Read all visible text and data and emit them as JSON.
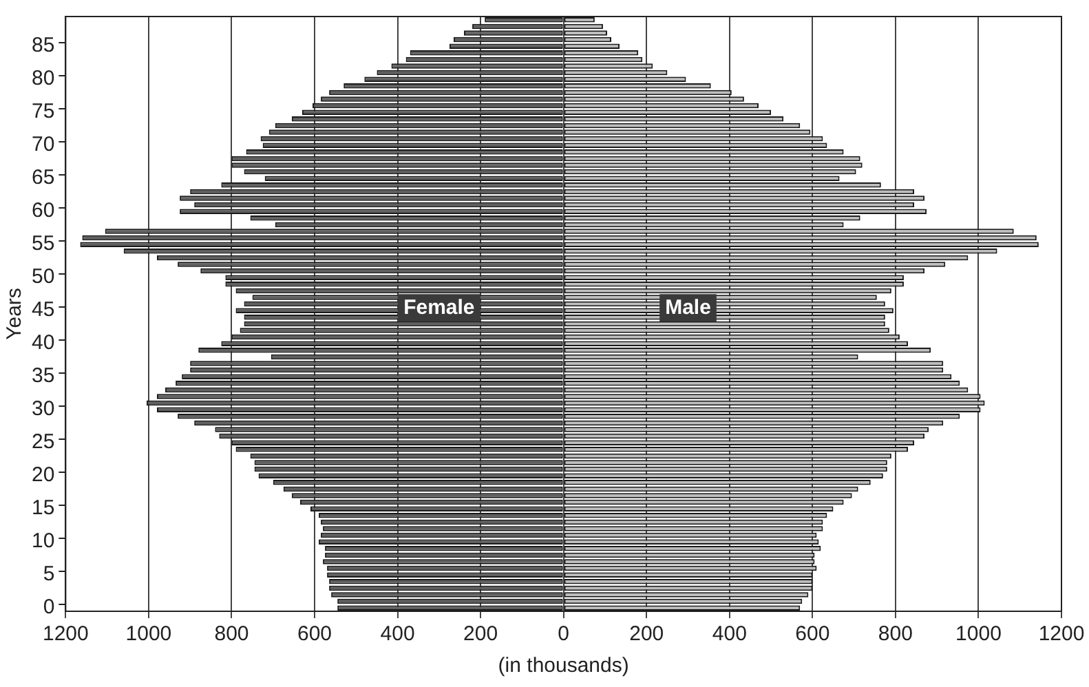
{
  "chart_data": {
    "type": "bar",
    "orientation": "horizontal",
    "xlabel": "(in thousands)",
    "ylabel": "Years",
    "categories": [
      null,
      null,
      null,
      null,
      "85",
      null,
      null,
      null,
      null,
      "80",
      null,
      null,
      null,
      null,
      "75",
      null,
      null,
      null,
      null,
      "70",
      null,
      null,
      null,
      null,
      "65",
      null,
      null,
      null,
      null,
      "60",
      null,
      null,
      null,
      null,
      "55",
      null,
      null,
      null,
      null,
      "50",
      null,
      null,
      null,
      null,
      "45",
      null,
      null,
      null,
      null,
      "40",
      null,
      null,
      null,
      null,
      "35",
      null,
      null,
      null,
      null,
      "30",
      null,
      null,
      null,
      null,
      "25",
      null,
      null,
      null,
      null,
      "20",
      null,
      null,
      null,
      null,
      "15",
      null,
      null,
      null,
      null,
      "10",
      null,
      null,
      null,
      null,
      "5",
      null,
      null,
      null,
      null,
      "0"
    ],
    "series": [
      {
        "name": "Female",
        "color": "#5f5f5f",
        "values": [
          -190,
          -220,
          -240,
          -265,
          -275,
          -370,
          -380,
          -415,
          -450,
          -480,
          -530,
          -565,
          -585,
          -605,
          -630,
          -655,
          -695,
          -710,
          -730,
          -725,
          -765,
          -800,
          -800,
          -770,
          -720,
          -825,
          -900,
          -925,
          -890,
          -925,
          -755,
          -695,
          -1105,
          -1160,
          -1165,
          -1060,
          -980,
          -930,
          -875,
          -815,
          -815,
          -790,
          -750,
          -770,
          -790,
          -770,
          -770,
          -780,
          -800,
          -825,
          -880,
          -705,
          -900,
          -900,
          -920,
          -935,
          -960,
          -980,
          -1005,
          -980,
          -930,
          -890,
          -840,
          -830,
          -800,
          -790,
          -755,
          -745,
          -745,
          -735,
          -700,
          -675,
          -655,
          -635,
          -610,
          -590,
          -585,
          -580,
          -585,
          -590,
          -575,
          -575,
          -580,
          -570,
          -570,
          -565,
          -565,
          -560,
          -545,
          -545
        ]
      },
      {
        "name": "Male",
        "color": "#bdbdbd",
        "values": [
          75,
          95,
          105,
          115,
          135,
          180,
          190,
          215,
          250,
          295,
          355,
          405,
          435,
          470,
          500,
          530,
          570,
          595,
          625,
          635,
          675,
          715,
          720,
          705,
          665,
          765,
          845,
          870,
          845,
          875,
          715,
          675,
          1085,
          1140,
          1145,
          1045,
          975,
          920,
          870,
          820,
          820,
          790,
          755,
          775,
          795,
          775,
          775,
          785,
          810,
          830,
          885,
          710,
          915,
          915,
          935,
          955,
          975,
          1005,
          1015,
          1005,
          955,
          915,
          880,
          870,
          845,
          830,
          790,
          780,
          780,
          770,
          740,
          710,
          695,
          675,
          650,
          635,
          625,
          625,
          610,
          615,
          620,
          605,
          605,
          610,
          600,
          600,
          600,
          590,
          575,
          570
        ]
      }
    ],
    "xlim": [
      -1200,
      1200
    ],
    "xticks": [
      {
        "value": -1200,
        "label": "1200"
      },
      {
        "value": -1000,
        "label": "1000"
      },
      {
        "value": -800,
        "label": "800"
      },
      {
        "value": -600,
        "label": "600"
      },
      {
        "value": -400,
        "label": "400"
      },
      {
        "value": -200,
        "label": "200"
      },
      0,
      200,
      400,
      600,
      800,
      1000,
      1200
    ],
    "grid": "x",
    "legend": false
  }
}
